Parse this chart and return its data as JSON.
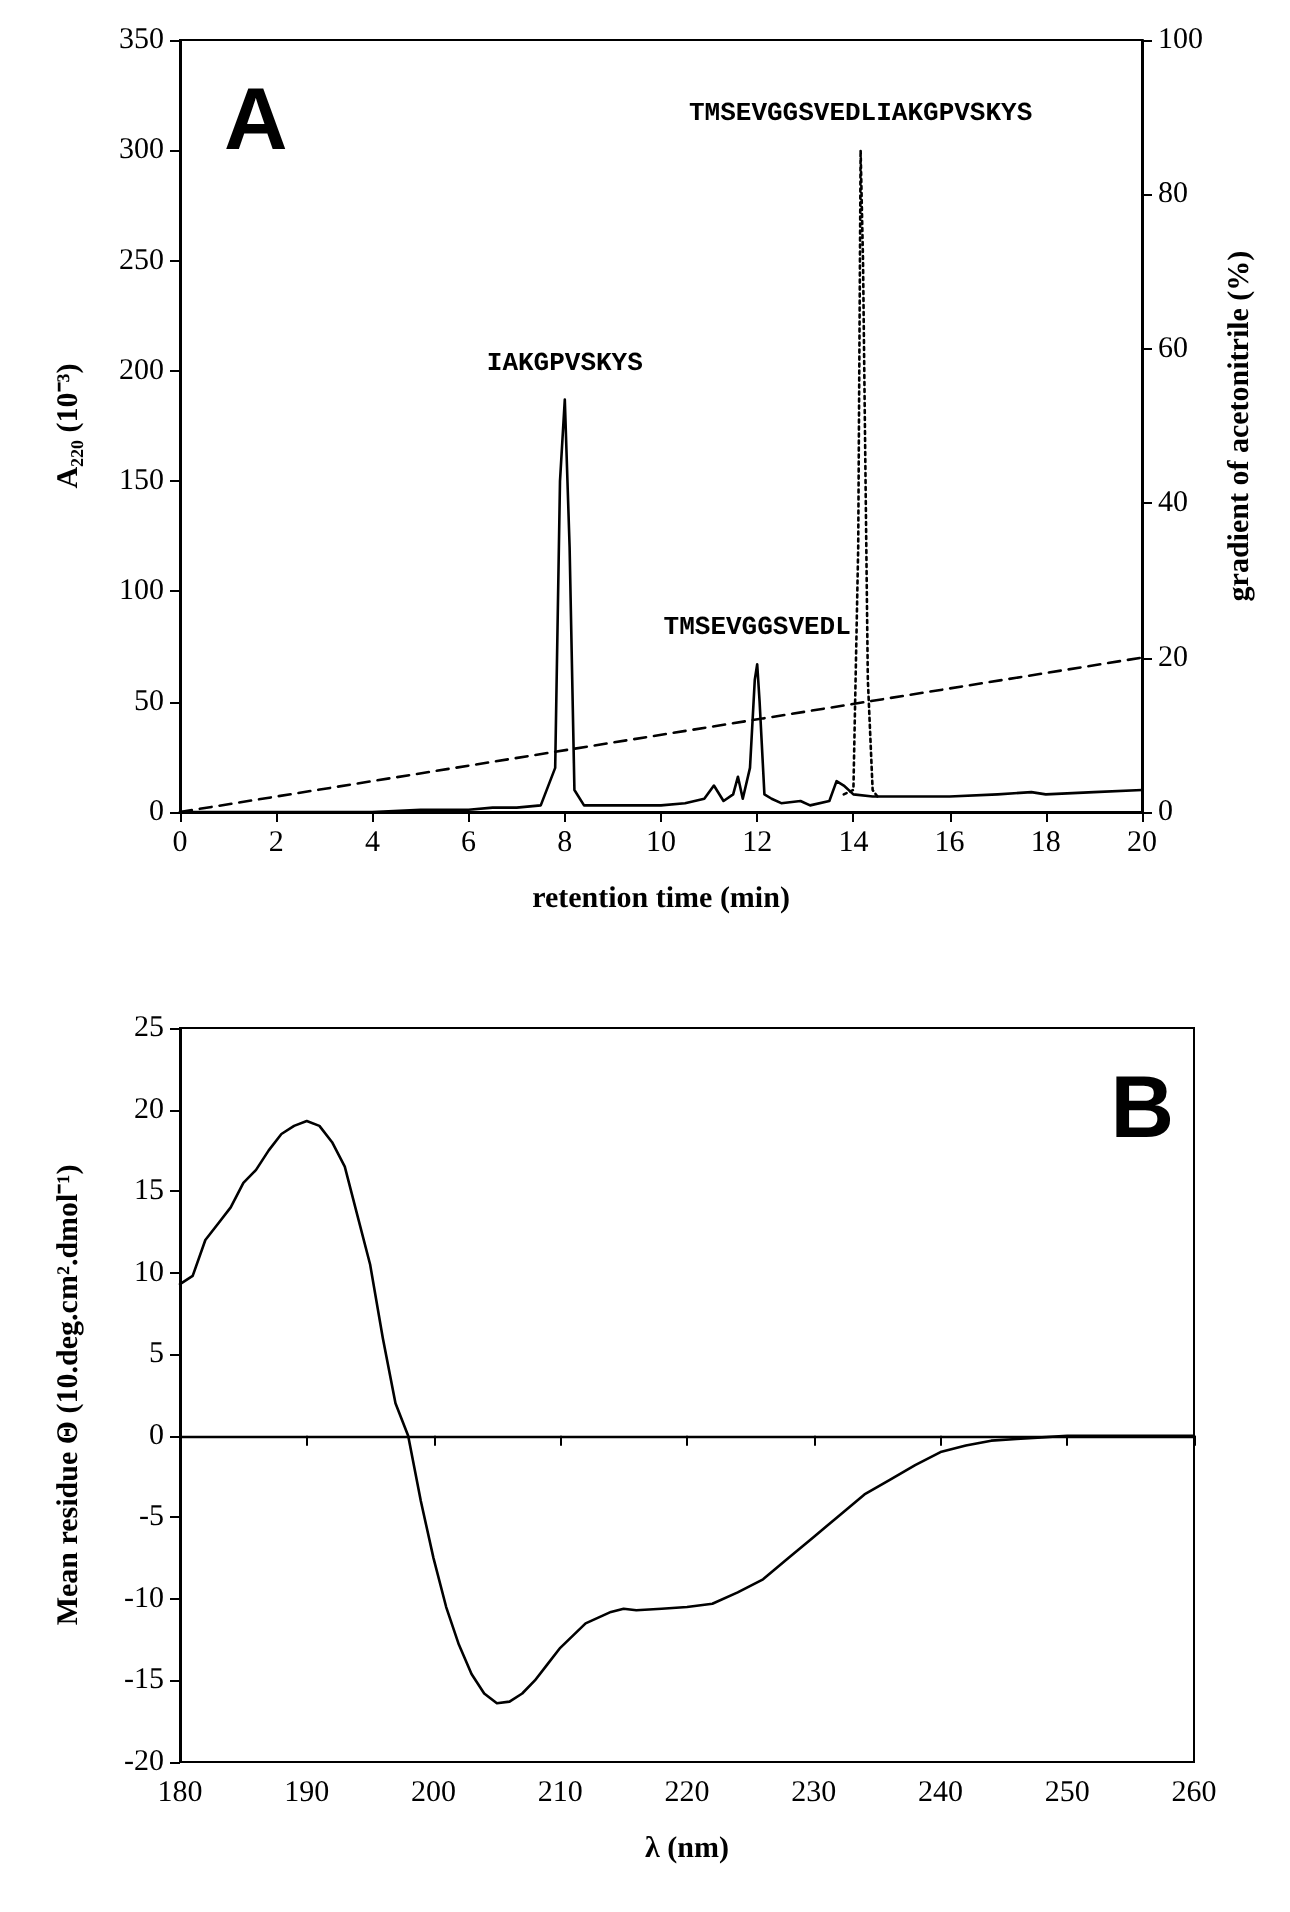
{
  "chart_data": [
    {
      "type": "line",
      "xlabel": "retention time (min)",
      "ylabel": "A₂₂₀ (10⁻³)",
      "y2label": "gradient of acetonitrile (%)",
      "xlim": [
        0,
        20
      ],
      "xticks": [
        0,
        2,
        4,
        6,
        8,
        10,
        12,
        14,
        16,
        18,
        20
      ],
      "ylim": [
        0,
        350
      ],
      "yticks": [
        0,
        50,
        100,
        150,
        200,
        250,
        300,
        350
      ],
      "y2lim": [
        0,
        100
      ],
      "y2ticks": [
        0,
        20,
        40,
        60,
        80,
        100
      ],
      "marker": "none",
      "series": [
        {
          "color": "#000000",
          "line_style": "solid",
          "x": [
            0,
            2,
            4,
            5,
            6,
            6.5,
            7,
            7.5,
            7.8,
            7.9,
            8,
            8.1,
            8.2,
            8.4,
            9,
            10,
            10.5,
            10.9,
            11.1,
            11.3,
            11.5,
            11.6,
            11.7,
            11.85,
            11.95,
            12,
            12.05,
            12.15,
            12.3,
            12.5,
            12.9,
            13.1,
            13.5,
            13.65,
            13.8,
            14,
            14.4,
            15,
            16,
            17,
            17.7,
            18,
            19,
            20
          ],
          "values": [
            0,
            0,
            0,
            1,
            1,
            2,
            2,
            3,
            20,
            150,
            187,
            120,
            10,
            3,
            3,
            3,
            4,
            6,
            12,
            5,
            8,
            16,
            6,
            20,
            60,
            67,
            50,
            8,
            6,
            4,
            5,
            3,
            5,
            14,
            12,
            8,
            7,
            7,
            7,
            8,
            9,
            8,
            9,
            10
          ]
        },
        {
          "color": "#000000",
          "line_style": "dotted",
          "x": [
            13.8,
            14,
            14.1,
            14.15,
            14.2,
            14.3,
            14.4,
            14.5
          ],
          "values": [
            8,
            10,
            120,
            300,
            250,
            60,
            10,
            7
          ]
        },
        {
          "color": "#000000",
          "line_style": "dashed",
          "axis": "y2",
          "x": [
            0,
            20
          ],
          "values": [
            0,
            20
          ]
        }
      ],
      "annotations": [
        "A",
        {
          "text": "IAKGPVSKYS",
          "x": 8,
          "y": 187
        },
        {
          "text": "TMSEVGGSVEDL",
          "x": 12,
          "y": 67
        },
        {
          "text": "TMSEVGGSVEDLIAKGPVSKYS",
          "x": 14.15,
          "y": 300
        }
      ]
    },
    {
      "type": "line",
      "xlabel": "λ (nm)",
      "ylabel": "Mean residue Θ (10.deg.cm².dmol⁻¹)",
      "xlim": [
        180,
        260
      ],
      "xticks": [
        180,
        190,
        200,
        210,
        220,
        230,
        240,
        250,
        260
      ],
      "ylim": [
        -20,
        25
      ],
      "yticks": [
        -20,
        -15,
        -10,
        -5,
        0,
        5,
        10,
        15,
        20,
        25
      ],
      "marker": "none",
      "ref_lines": [
        {
          "axis": "y",
          "value": 0,
          "color": "#000000"
        }
      ],
      "series": [
        {
          "color": "#000000",
          "line_style": "solid",
          "x": [
            180,
            181,
            182,
            183,
            184,
            185,
            186,
            187,
            188,
            189,
            190,
            191,
            192,
            193,
            194,
            195,
            196,
            197,
            198,
            199,
            200,
            201,
            202,
            203,
            204,
            205,
            206,
            207,
            208,
            209,
            210,
            212,
            214,
            215,
            216,
            218,
            220,
            222,
            224,
            226,
            228,
            230,
            232,
            234,
            236,
            238,
            240,
            242,
            244,
            246,
            248,
            250,
            255,
            260
          ],
          "values": [
            9.3,
            9.8,
            12,
            13,
            14,
            15.5,
            16.3,
            17.5,
            18.5,
            19,
            19.3,
            19,
            18,
            16.5,
            13.5,
            10.5,
            6,
            2,
            0,
            -4,
            -7.5,
            -10.5,
            -12.8,
            -14.6,
            -15.8,
            -16.4,
            -16.3,
            -15.8,
            -15,
            -14,
            -13,
            -11.5,
            -10.8,
            -10.6,
            -10.7,
            -10.6,
            -10.5,
            -10.3,
            -9.6,
            -8.8,
            -7.5,
            -6.2,
            -4.9,
            -3.6,
            -2.7,
            -1.8,
            -1,
            -0.6,
            -0.3,
            -0.2,
            -0.1,
            0,
            0,
            0
          ]
        }
      ],
      "annotations": [
        "B"
      ]
    }
  ]
}
